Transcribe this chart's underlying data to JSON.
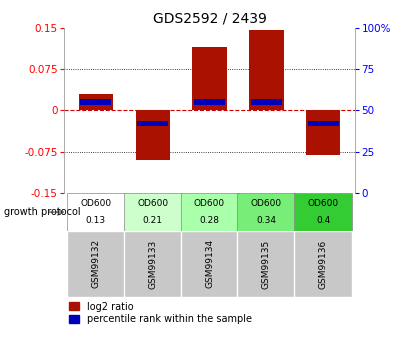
{
  "title": "GDS2592 / 2439",
  "samples": [
    "GSM99132",
    "GSM99133",
    "GSM99134",
    "GSM99135",
    "GSM99136"
  ],
  "log2_ratio": [
    0.03,
    -0.09,
    0.115,
    0.145,
    -0.08
  ],
  "percentile_rank_pct": [
    55,
    42,
    55,
    55,
    42
  ],
  "bar_width": 0.6,
  "ylim": [
    -0.15,
    0.15
  ],
  "yticks_left": [
    -0.15,
    -0.075,
    0,
    0.075,
    0.15
  ],
  "yticks_right": [
    0,
    25,
    50,
    75,
    100
  ],
  "protocol_label": "growth protocol",
  "protocol_values_line1": [
    "OD600",
    "OD600",
    "OD600",
    "OD600",
    "OD600"
  ],
  "protocol_values_line2": [
    "0.13",
    "0.21",
    "0.28",
    "0.34",
    "0.4"
  ],
  "protocol_colors": [
    "#ffffff",
    "#ccffcc",
    "#aaffaa",
    "#77ee77",
    "#33cc33"
  ],
  "bar_color_red": "#aa1100",
  "bar_color_blue": "#0000bb",
  "percentile_bar_height": 0.01,
  "grid_color": "#000000",
  "zero_line_color": "#cc0000",
  "sample_bg_color": "#c8c8c8",
  "legend_red_label": "log2 ratio",
  "legend_blue_label": "percentile rank within the sample",
  "figwidth": 4.03,
  "figheight": 3.45,
  "dpi": 100
}
